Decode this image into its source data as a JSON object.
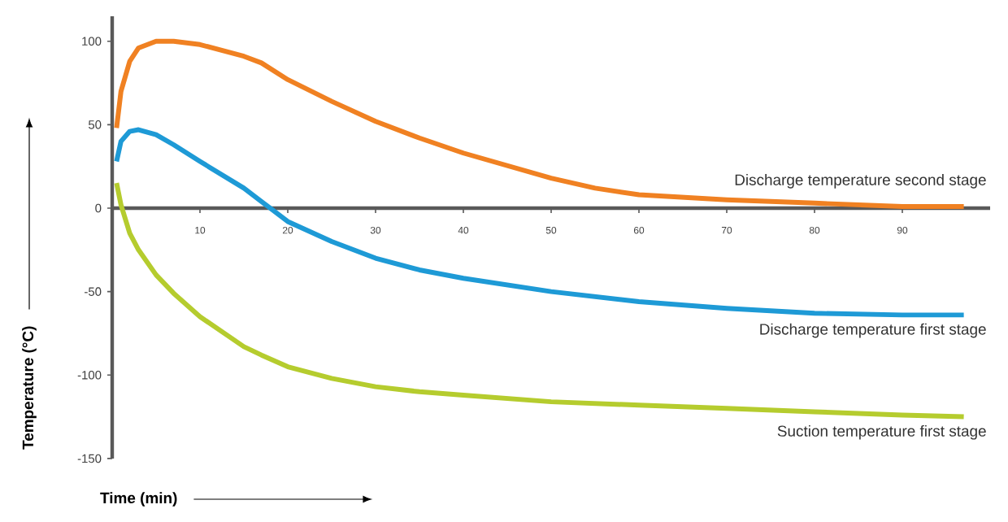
{
  "chart_data": {
    "type": "line",
    "xlabel": "Time (min)",
    "ylabel": "Temperature (°C)",
    "xlim": [
      0,
      100
    ],
    "ylim": [
      -150,
      115
    ],
    "xticks": [
      10,
      20,
      30,
      40,
      50,
      60,
      70,
      80,
      90
    ],
    "yticks": [
      -150,
      -100,
      -50,
      0,
      50,
      100
    ],
    "grid": false,
    "legend": false,
    "marker": "none",
    "line_style": "solid",
    "x": [
      0.5,
      1,
      2,
      3,
      5,
      7,
      10,
      15,
      17,
      20,
      25,
      30,
      35,
      40,
      50,
      55,
      60,
      70,
      80,
      90,
      97
    ],
    "series": [
      {
        "name": "Discharge temperature second stage",
        "color": "#f08122",
        "values": [
          48,
          70,
          88,
          96,
          100,
          100,
          98,
          91,
          87,
          77,
          64,
          52,
          42,
          33,
          18,
          12,
          8,
          5,
          3,
          1,
          1
        ]
      },
      {
        "name": "Discharge temperature first stage",
        "color": "#1e9ad6",
        "values": [
          28,
          40,
          46,
          47,
          44,
          38,
          28,
          12,
          4,
          -8,
          -20,
          -30,
          -37,
          -42,
          -50,
          -53,
          -56,
          -60,
          -63,
          -64,
          -64
        ]
      },
      {
        "name": "Suction temperature first stage",
        "color": "#b5cc2e",
        "values": [
          15,
          2,
          -15,
          -25,
          -40,
          -51,
          -65,
          -83,
          -88,
          -95,
          -102,
          -107,
          -110,
          -112,
          -116,
          -117,
          -118,
          -120,
          -122,
          -124,
          -125
        ]
      }
    ]
  }
}
